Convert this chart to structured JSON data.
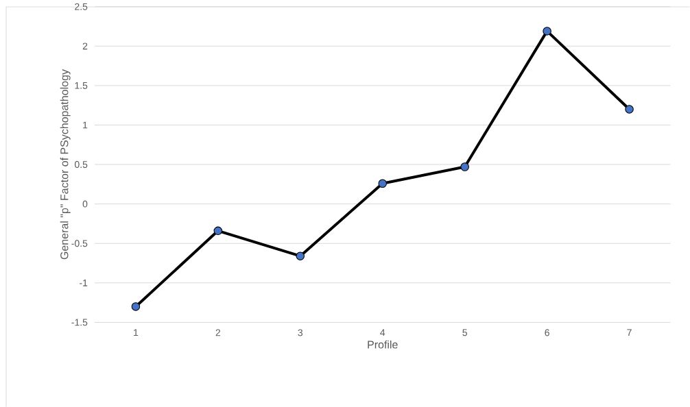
{
  "chart_data": {
    "type": "line",
    "xlabel": "Profile",
    "ylabel": "General \"p\" Factor of PSychopathology",
    "categories": [
      "1",
      "2",
      "3",
      "4",
      "5",
      "6",
      "7"
    ],
    "values": [
      -1.3,
      -0.34,
      -0.66,
      0.26,
      0.47,
      2.19,
      1.2
    ],
    "color": "#000000",
    "ylim": [
      -1.5,
      2.5
    ],
    "yticks": [
      -1.5,
      -1,
      -0.5,
      0,
      0.5,
      1,
      1.5,
      2,
      2.5
    ],
    "grid": "y",
    "marker": "circle",
    "line_style": "solid"
  }
}
